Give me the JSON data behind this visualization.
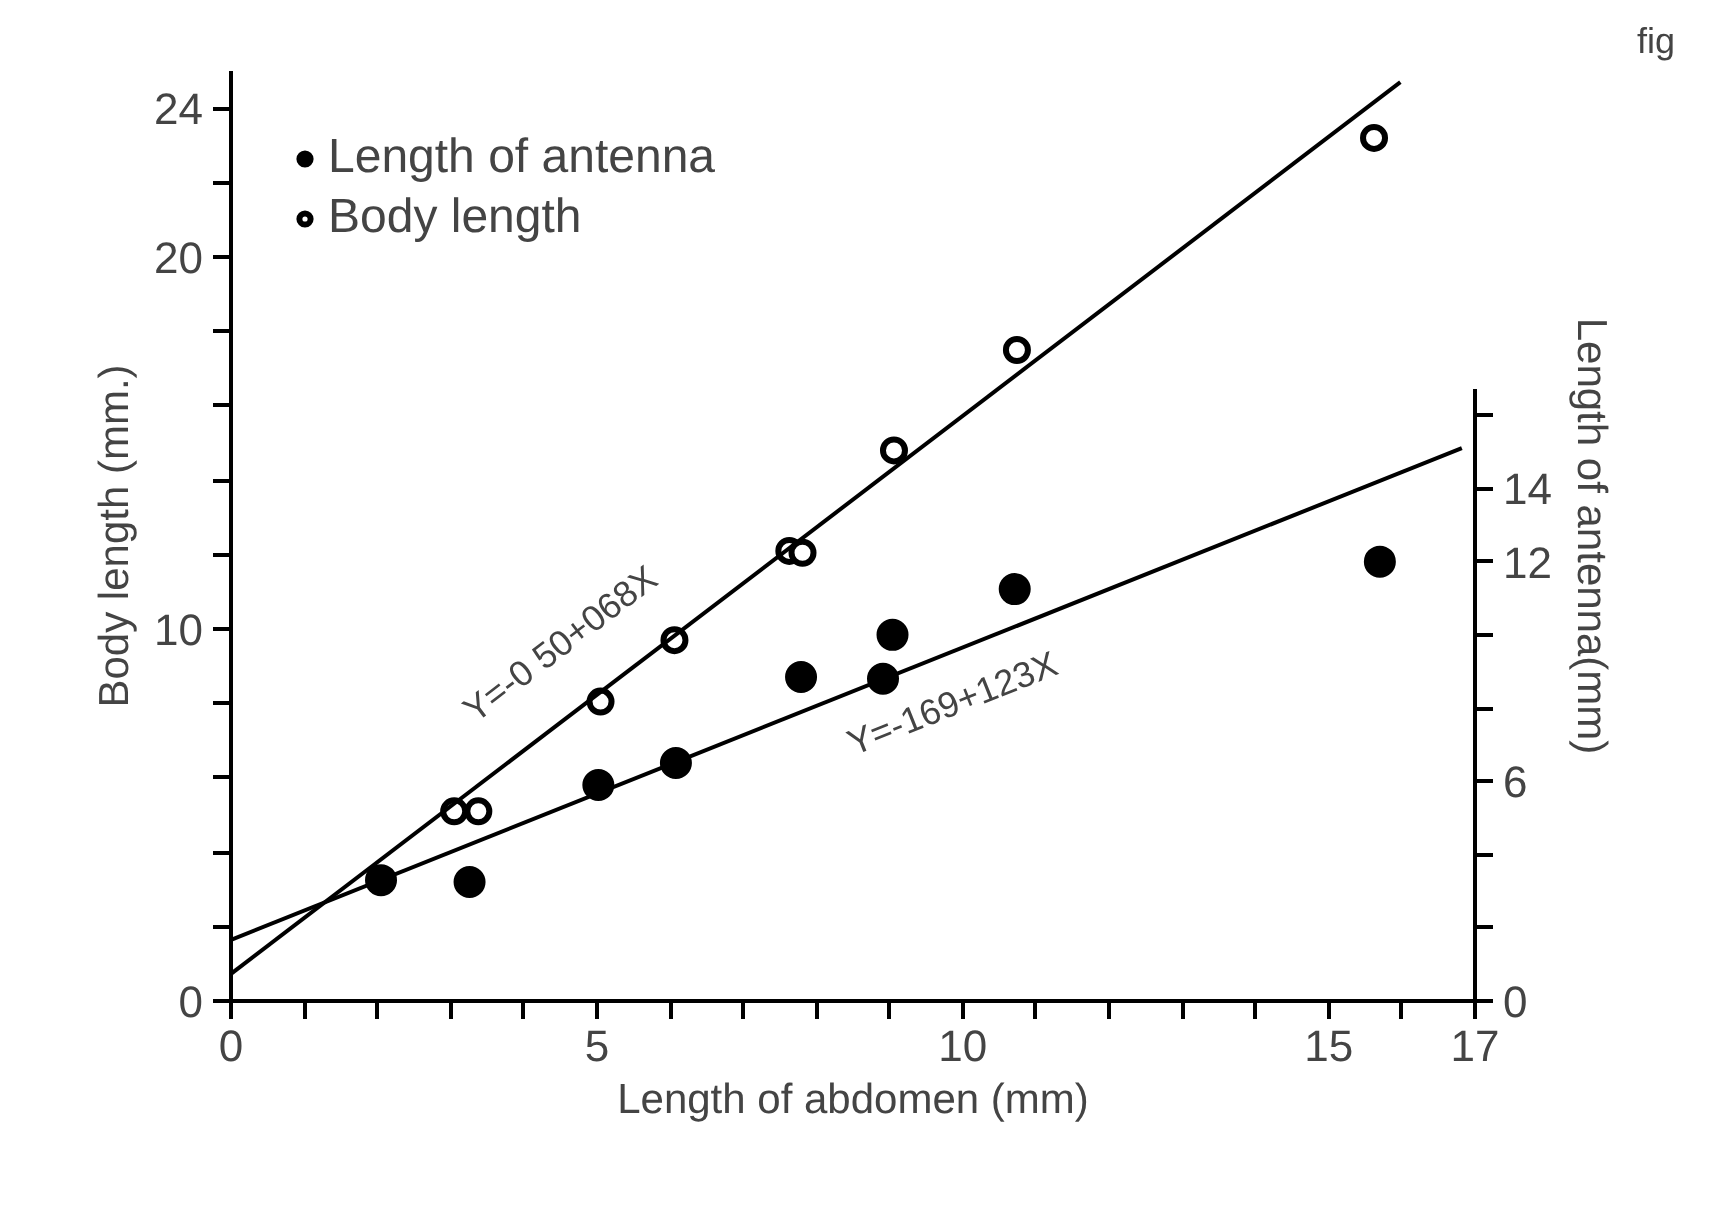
{
  "chart_data": {
    "type": "scatter",
    "xlabel": "Length of abdomen (mm)",
    "ylabel": "Body length (mm.)",
    "y2label": "Length of antenna(mm)",
    "xlim": [
      0,
      17
    ],
    "ylim": [
      0,
      25
    ],
    "y2lim": [
      0,
      25.4
    ],
    "xticks": [
      0,
      {
        "value": 1,
        "label": null
      },
      {
        "value": 2,
        "label": null
      },
      {
        "value": 3,
        "label": null
      },
      {
        "value": 4,
        "label": null
      },
      5,
      {
        "value": 6,
        "label": null
      },
      {
        "value": 7,
        "label": null
      },
      {
        "value": 8,
        "label": null
      },
      {
        "value": 9,
        "label": null
      },
      10,
      {
        "value": 11,
        "label": null
      },
      {
        "value": 12,
        "label": null
      },
      {
        "value": 13,
        "label": null
      },
      {
        "value": 14,
        "label": null
      },
      15,
      {
        "value": 16,
        "label": null
      },
      17
    ],
    "yticks": [
      0,
      {
        "value": 2,
        "label": null
      },
      {
        "value": 4,
        "label": null
      },
      {
        "value": 6,
        "label": null
      },
      {
        "value": 8,
        "label": null
      },
      10,
      {
        "value": 12,
        "label": null
      },
      {
        "value": 14,
        "label": null
      },
      {
        "value": 16,
        "label": null
      },
      {
        "value": 18,
        "label": null
      },
      20,
      {
        "value": 22,
        "label": null
      },
      24
    ],
    "y2ticks": [
      0,
      {
        "value": 2,
        "label": null
      },
      {
        "value": 4,
        "label": null
      },
      6,
      {
        "value": 8,
        "label": null
      },
      {
        "value": 10,
        "label": null
      },
      12,
      14,
      {
        "value": 16,
        "label": null
      }
    ],
    "series": [
      {
        "name": "Length of antenna",
        "type": "scatter",
        "marker": "circle",
        "color": "#000000",
        "axis": "y2",
        "x": [
          2.05,
          3.26,
          5.02,
          6.08,
          7.79,
          8.91,
          9.04,
          10.71,
          15.7
        ],
        "values": [
          3.3,
          3.25,
          5.9,
          6.5,
          8.85,
          8.8,
          10.0,
          11.25,
          12.0
        ]
      },
      {
        "name": "Body length",
        "marker": "circle",
        "color": "#000000",
        "x": [
          3.05,
          3.38,
          5.05,
          6.06,
          7.63,
          7.81,
          9.06,
          10.74,
          15.62
        ],
        "values": [
          5.1,
          5.1,
          8.05,
          9.7,
          12.1,
          12.05,
          14.8,
          17.5,
          23.2
        ]
      },
      {
        "type": "line",
        "color": "#000000",
        "x": [
          0,
          15.98
        ],
        "values": [
          0.73,
          24.7
        ]
      },
      {
        "type": "line",
        "color": "#000000",
        "axis": "y2",
        "x": [
          0,
          16.82
        ],
        "values": [
          1.67,
          15.1
        ]
      }
    ],
    "annotations": [
      "Y=-0 50+068X",
      "Y=-169+123X",
      "fig"
    ],
    "legend": "top left",
    "grid": false
  }
}
